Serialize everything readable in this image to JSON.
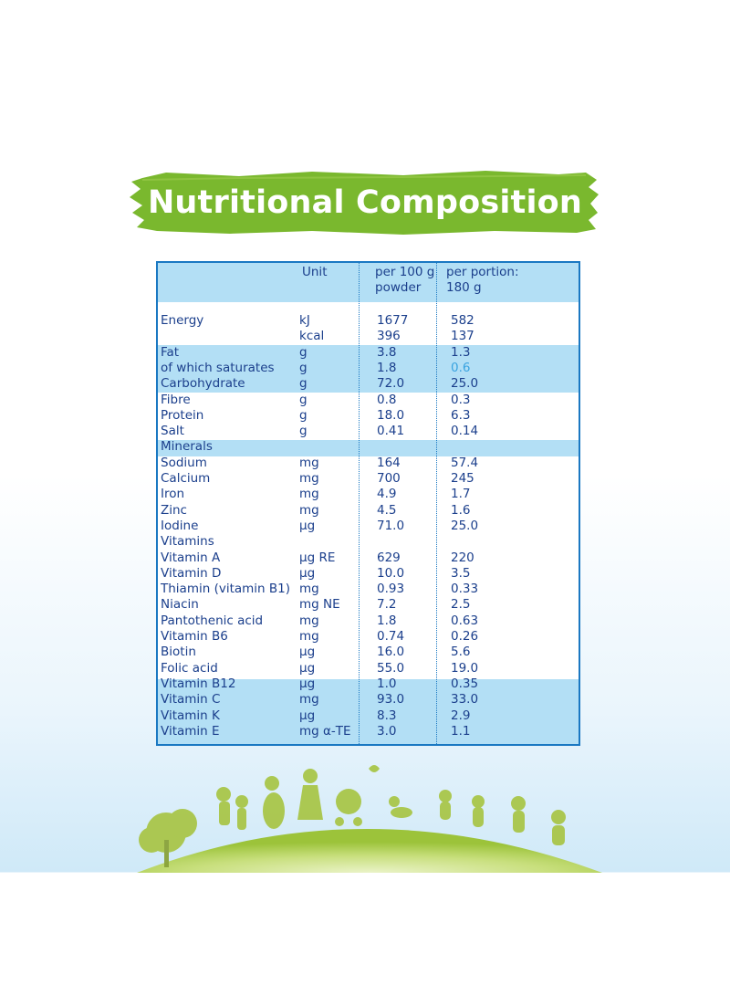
{
  "title": "Nutritional Composition",
  "colors": {
    "banner": "#7ab82e",
    "table_border": "#1a78c2",
    "band": "#b3dff5",
    "text": "#1b3f8c",
    "highlight": "#3aa3e0"
  },
  "table": {
    "headers": {
      "unit": "Unit",
      "per100_line1": "per 100 g",
      "per100_line2": "powder",
      "portion_line1": "per portion:",
      "portion_line2": "180 g"
    },
    "rows": [
      {
        "name": "Energy",
        "unit": "kJ",
        "per100": "1677",
        "portion": "582"
      },
      {
        "name": "",
        "unit": "kcal",
        "per100": "396",
        "portion": "137"
      },
      {
        "name": "Fat",
        "unit": "g",
        "per100": "3.8",
        "portion": "1.3"
      },
      {
        "name": "of which saturates",
        "unit": "g",
        "per100": "1.8",
        "portion": "0.6"
      },
      {
        "name": "Carbohydrate",
        "unit": "g",
        "per100": "72.0",
        "portion": "25.0"
      },
      {
        "name": "Fibre",
        "unit": "g",
        "per100": "0.8",
        "portion": "0.3"
      },
      {
        "name": "Protein",
        "unit": "g",
        "per100": "18.0",
        "portion": "6.3"
      },
      {
        "name": "Salt",
        "unit": "g",
        "per100": "0.41",
        "portion": "0.14"
      },
      {
        "name": "Minerals",
        "unit": "",
        "per100": "",
        "portion": ""
      },
      {
        "name": "Sodium",
        "unit": "mg",
        "per100": "164",
        "portion": "57.4"
      },
      {
        "name": "Calcium",
        "unit": "mg",
        "per100": "700",
        "portion": "245"
      },
      {
        "name": "Iron",
        "unit": "mg",
        "per100": "4.9",
        "portion": "1.7"
      },
      {
        "name": "Zinc",
        "unit": "mg",
        "per100": "4.5",
        "portion": "1.6"
      },
      {
        "name": "Iodine",
        "unit": "µg",
        "per100": "71.0",
        "portion": "25.0"
      },
      {
        "name": "Vitamins",
        "unit": "",
        "per100": "",
        "portion": ""
      },
      {
        "name": "Vitamin A",
        "unit": "µg RE",
        "per100": "629",
        "portion": "220"
      },
      {
        "name": "Vitamin D",
        "unit": "µg",
        "per100": "10.0",
        "portion": "3.5"
      },
      {
        "name": "Thiamin (vitamin B1)",
        "unit": "mg",
        "per100": "0.93",
        "portion": "0.33"
      },
      {
        "name": "Niacin",
        "unit": "mg NE",
        "per100": "7.2",
        "portion": "2.5"
      },
      {
        "name": "Pantothenic acid",
        "unit": "mg",
        "per100": "1.8",
        "portion": "0.63"
      },
      {
        "name": "Vitamin B6",
        "unit": "mg",
        "per100": "0.74",
        "portion": "0.26"
      },
      {
        "name": "Biotin",
        "unit": "µg",
        "per100": "16.0",
        "portion": "5.6"
      },
      {
        "name": "Folic acid",
        "unit": "µg",
        "per100": "55.0",
        "portion": "19.0"
      },
      {
        "name": "Vitamin B12",
        "unit": "µg",
        "per100": "1.0",
        "portion": "0.35"
      },
      {
        "name": "Vitamin C",
        "unit": "mg",
        "per100": "93.0",
        "portion": "33.0"
      },
      {
        "name": "Vitamin K",
        "unit": "µg",
        "per100": "8.3",
        "portion": "2.9"
      },
      {
        "name": "Vitamin E",
        "unit": "mg α-TE",
        "per100": "3.0",
        "portion": "1.1"
      }
    ]
  }
}
